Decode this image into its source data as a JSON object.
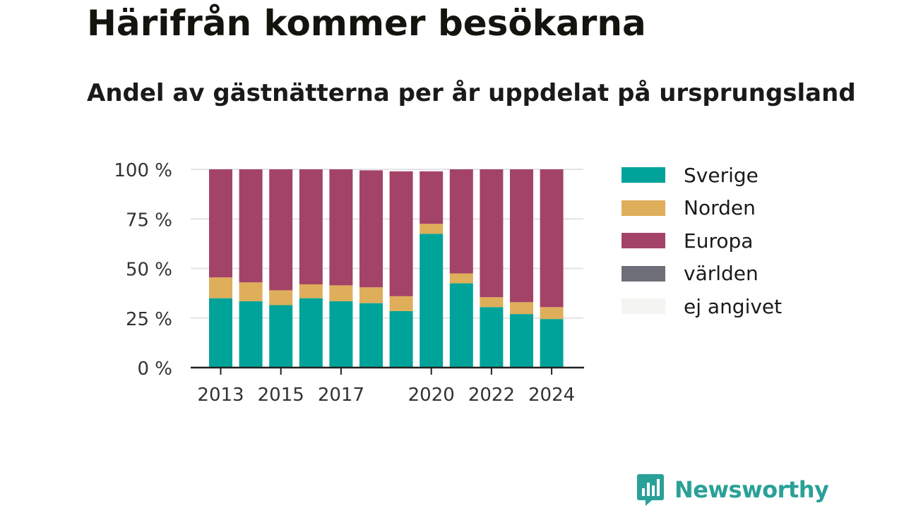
{
  "header": {
    "title": "Härifrån kommer besökarna",
    "subtitle": "Andel av gästnätterna per år uppdelat på ursprungsland"
  },
  "brand": {
    "name": "Newsworthy",
    "icon": "bar-chart-speech-bubble-icon",
    "color": "#2aa198"
  },
  "chart_data": {
    "type": "bar",
    "stacked": true,
    "categories": [
      "2013",
      "2014",
      "2015",
      "2016",
      "2017",
      "2018",
      "2019",
      "2020",
      "2021",
      "2022",
      "2023",
      "2024"
    ],
    "x_tick_labels": [
      "2013",
      "",
      "2015",
      "",
      "2017",
      "",
      "",
      "2020",
      "",
      "2022",
      "",
      "2024"
    ],
    "series": [
      {
        "name": "Sverige",
        "color": "#00a39a",
        "values": [
          35,
          33.5,
          31.5,
          35,
          33.5,
          32.5,
          28.5,
          67.5,
          42.5,
          30.5,
          27,
          24.5
        ]
      },
      {
        "name": "Norden",
        "color": "#deae5a",
        "values": [
          10.5,
          9.5,
          7.5,
          7,
          8,
          8,
          7.5,
          5,
          5,
          5,
          6,
          6
        ]
      },
      {
        "name": "Europa",
        "color": "#a44368",
        "values": [
          54.5,
          57,
          61,
          58,
          58.5,
          59,
          63,
          26.5,
          52.5,
          64.5,
          67,
          69.5
        ]
      },
      {
        "name": "världen",
        "color": "#6e6e78",
        "values": [
          0,
          0,
          0,
          0,
          0,
          0,
          0,
          0,
          0,
          0,
          0,
          0
        ]
      },
      {
        "name": "ej angivet",
        "color": "#f4f4f2",
        "values": [
          0,
          0,
          0,
          0,
          0,
          0,
          0,
          0,
          0,
          0,
          0,
          0
        ]
      }
    ],
    "y_ticks": [
      "0 %",
      "25 %",
      "50 %",
      "75 %",
      "100 %"
    ],
    "y_tick_values": [
      0,
      25,
      50,
      75,
      100
    ],
    "ylim": [
      0,
      100
    ],
    "grid": true,
    "legend_position": "right"
  }
}
